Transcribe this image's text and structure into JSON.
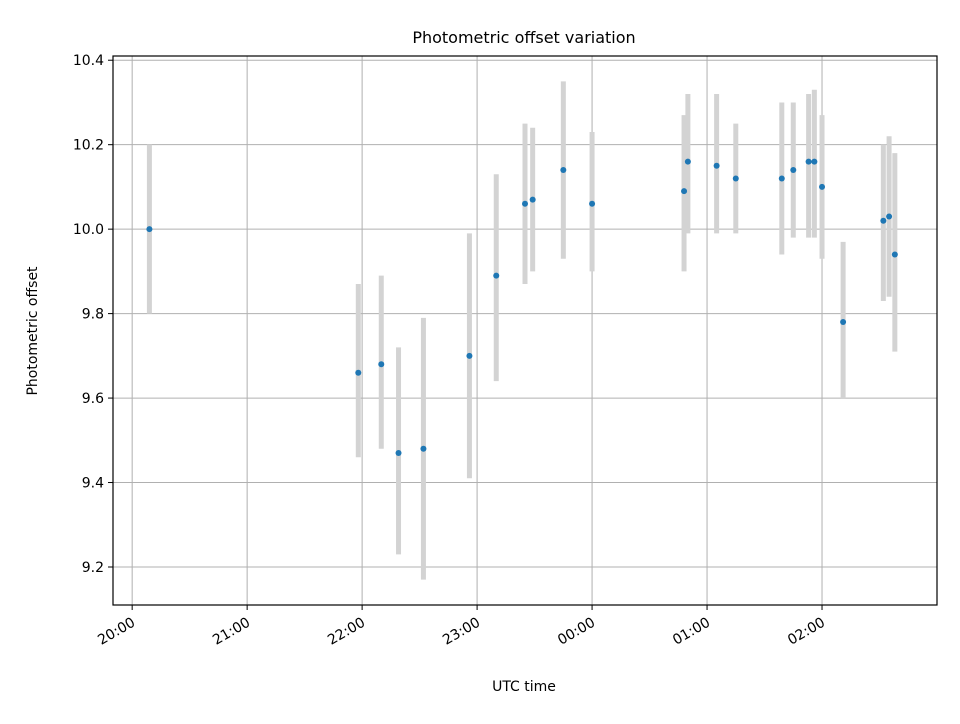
{
  "chart_data": {
    "type": "scatter",
    "title": "Photometric offset variation",
    "xlabel": "UTC time",
    "ylabel": "Photometric offset",
    "x_axis_kind": "time",
    "xlim": [
      "19:50",
      "27:00"
    ],
    "ylim": [
      9.11,
      10.41
    ],
    "x_ticks": [
      {
        "label": "20:00",
        "value": "20:00"
      },
      {
        "label": "21:00",
        "value": "21:00"
      },
      {
        "label": "22:00",
        "value": "22:00"
      },
      {
        "label": "23:00",
        "value": "23:00"
      },
      {
        "label": "00:00",
        "value": "24:00"
      },
      {
        "label": "01:00",
        "value": "25:00"
      },
      {
        "label": "02:00",
        "value": "26:00"
      }
    ],
    "y_ticks": [
      {
        "label": "9.2",
        "value": 9.2
      },
      {
        "label": "9.4",
        "value": 9.4
      },
      {
        "label": "9.6",
        "value": 9.6
      },
      {
        "label": "9.8",
        "value": 9.8
      },
      {
        "label": "10.0",
        "value": 10.0
      },
      {
        "label": "10.2",
        "value": 10.2
      },
      {
        "label": "10.4",
        "value": 10.4
      }
    ],
    "grid": true,
    "point_color": "#1f77b4",
    "errorbar_color": "#d3d3d3",
    "points": [
      {
        "time": "20:09",
        "y": 10.0,
        "err_low": 9.8,
        "err_high": 10.2
      },
      {
        "time": "21:58",
        "y": 9.66,
        "err_low": 9.46,
        "err_high": 9.87
      },
      {
        "time": "22:10",
        "y": 9.68,
        "err_low": 9.48,
        "err_high": 9.89
      },
      {
        "time": "22:19",
        "y": 9.47,
        "err_low": 9.23,
        "err_high": 9.72
      },
      {
        "time": "22:32",
        "y": 9.48,
        "err_low": 9.17,
        "err_high": 9.79
      },
      {
        "time": "22:56",
        "y": 9.7,
        "err_low": 9.41,
        "err_high": 9.99
      },
      {
        "time": "23:10",
        "y": 9.89,
        "err_low": 9.64,
        "err_high": 10.13
      },
      {
        "time": "23:25",
        "y": 10.06,
        "err_low": 9.87,
        "err_high": 10.25
      },
      {
        "time": "23:29",
        "y": 10.07,
        "err_low": 9.9,
        "err_high": 10.24
      },
      {
        "time": "23:45",
        "y": 10.14,
        "err_low": 9.93,
        "err_high": 10.35
      },
      {
        "time": "24:00",
        "y": 10.06,
        "err_low": 9.9,
        "err_high": 10.23
      },
      {
        "time": "24:48",
        "y": 10.09,
        "err_low": 9.9,
        "err_high": 10.27
      },
      {
        "time": "24:50",
        "y": 10.16,
        "err_low": 9.99,
        "err_high": 10.32
      },
      {
        "time": "25:05",
        "y": 10.15,
        "err_low": 9.99,
        "err_high": 10.32
      },
      {
        "time": "25:15",
        "y": 10.12,
        "err_low": 9.99,
        "err_high": 10.25
      },
      {
        "time": "25:39",
        "y": 10.12,
        "err_low": 9.94,
        "err_high": 10.3
      },
      {
        "time": "25:45",
        "y": 10.14,
        "err_low": 9.98,
        "err_high": 10.3
      },
      {
        "time": "25:53",
        "y": 10.16,
        "err_low": 9.98,
        "err_high": 10.32
      },
      {
        "time": "25:56",
        "y": 10.16,
        "err_low": 9.98,
        "err_high": 10.33
      },
      {
        "time": "26:00",
        "y": 10.1,
        "err_low": 9.93,
        "err_high": 10.27
      },
      {
        "time": "26:11",
        "y": 9.78,
        "err_low": 9.6,
        "err_high": 9.97
      },
      {
        "time": "26:32",
        "y": 10.02,
        "err_low": 9.83,
        "err_high": 10.2
      },
      {
        "time": "26:35",
        "y": 10.03,
        "err_low": 9.84,
        "err_high": 10.22
      },
      {
        "time": "26:38",
        "y": 9.94,
        "err_low": 9.71,
        "err_high": 10.18
      }
    ]
  }
}
